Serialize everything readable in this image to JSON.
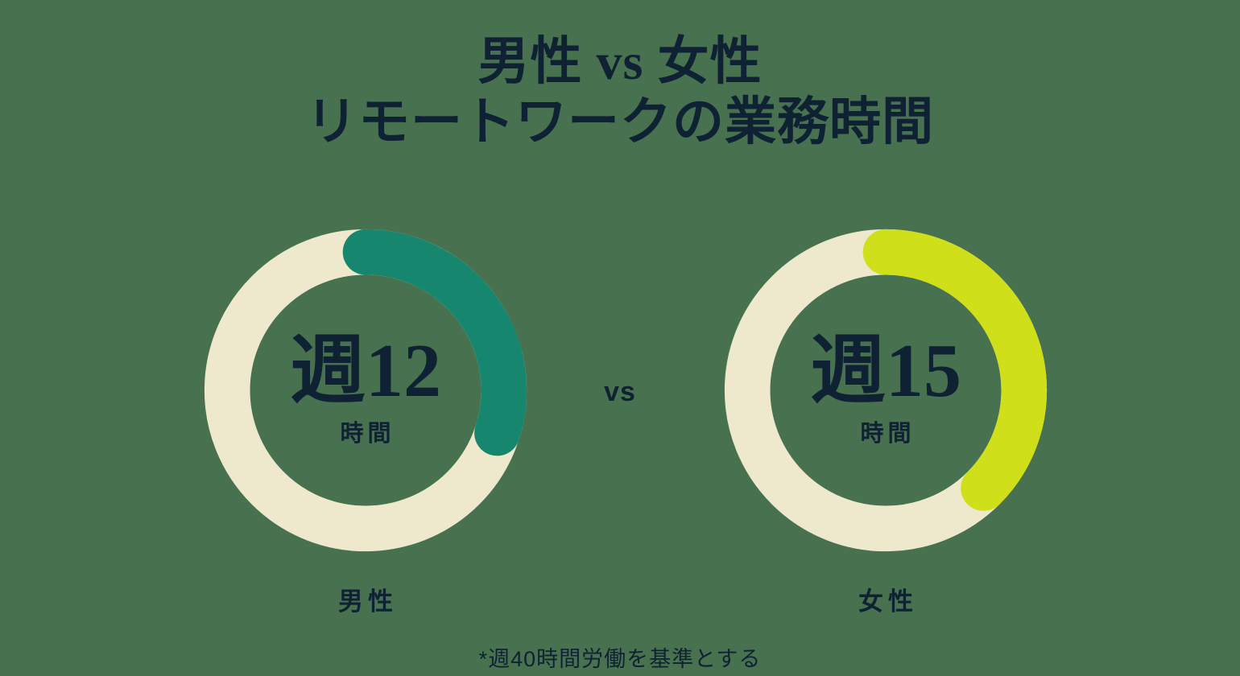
{
  "colors": {
    "background": "#48714F",
    "text": "#0F2233",
    "track": "#EEE9CD",
    "male_arc": "#17866E",
    "female_arc": "#CFE01A"
  },
  "title": {
    "line1": "男性 vs 女性",
    "line2": "リモートワークの業務時間"
  },
  "vs_label": "vs",
  "footnote": "*週40時間労働を基準とする",
  "chart_data": {
    "type": "donut",
    "title": "男性 vs 女性 リモートワークの業務時間",
    "base_hours_per_week": 40,
    "arc_start": "top",
    "arc_direction": "clockwise",
    "series": [
      {
        "name": "男性",
        "hours_per_week": 12,
        "value_text": "週12",
        "unit_text": "時間",
        "color": "#17866E"
      },
      {
        "name": "女性",
        "hours_per_week": 15,
        "value_text": "週15",
        "unit_text": "時間",
        "color": "#CFE01A"
      }
    ]
  }
}
